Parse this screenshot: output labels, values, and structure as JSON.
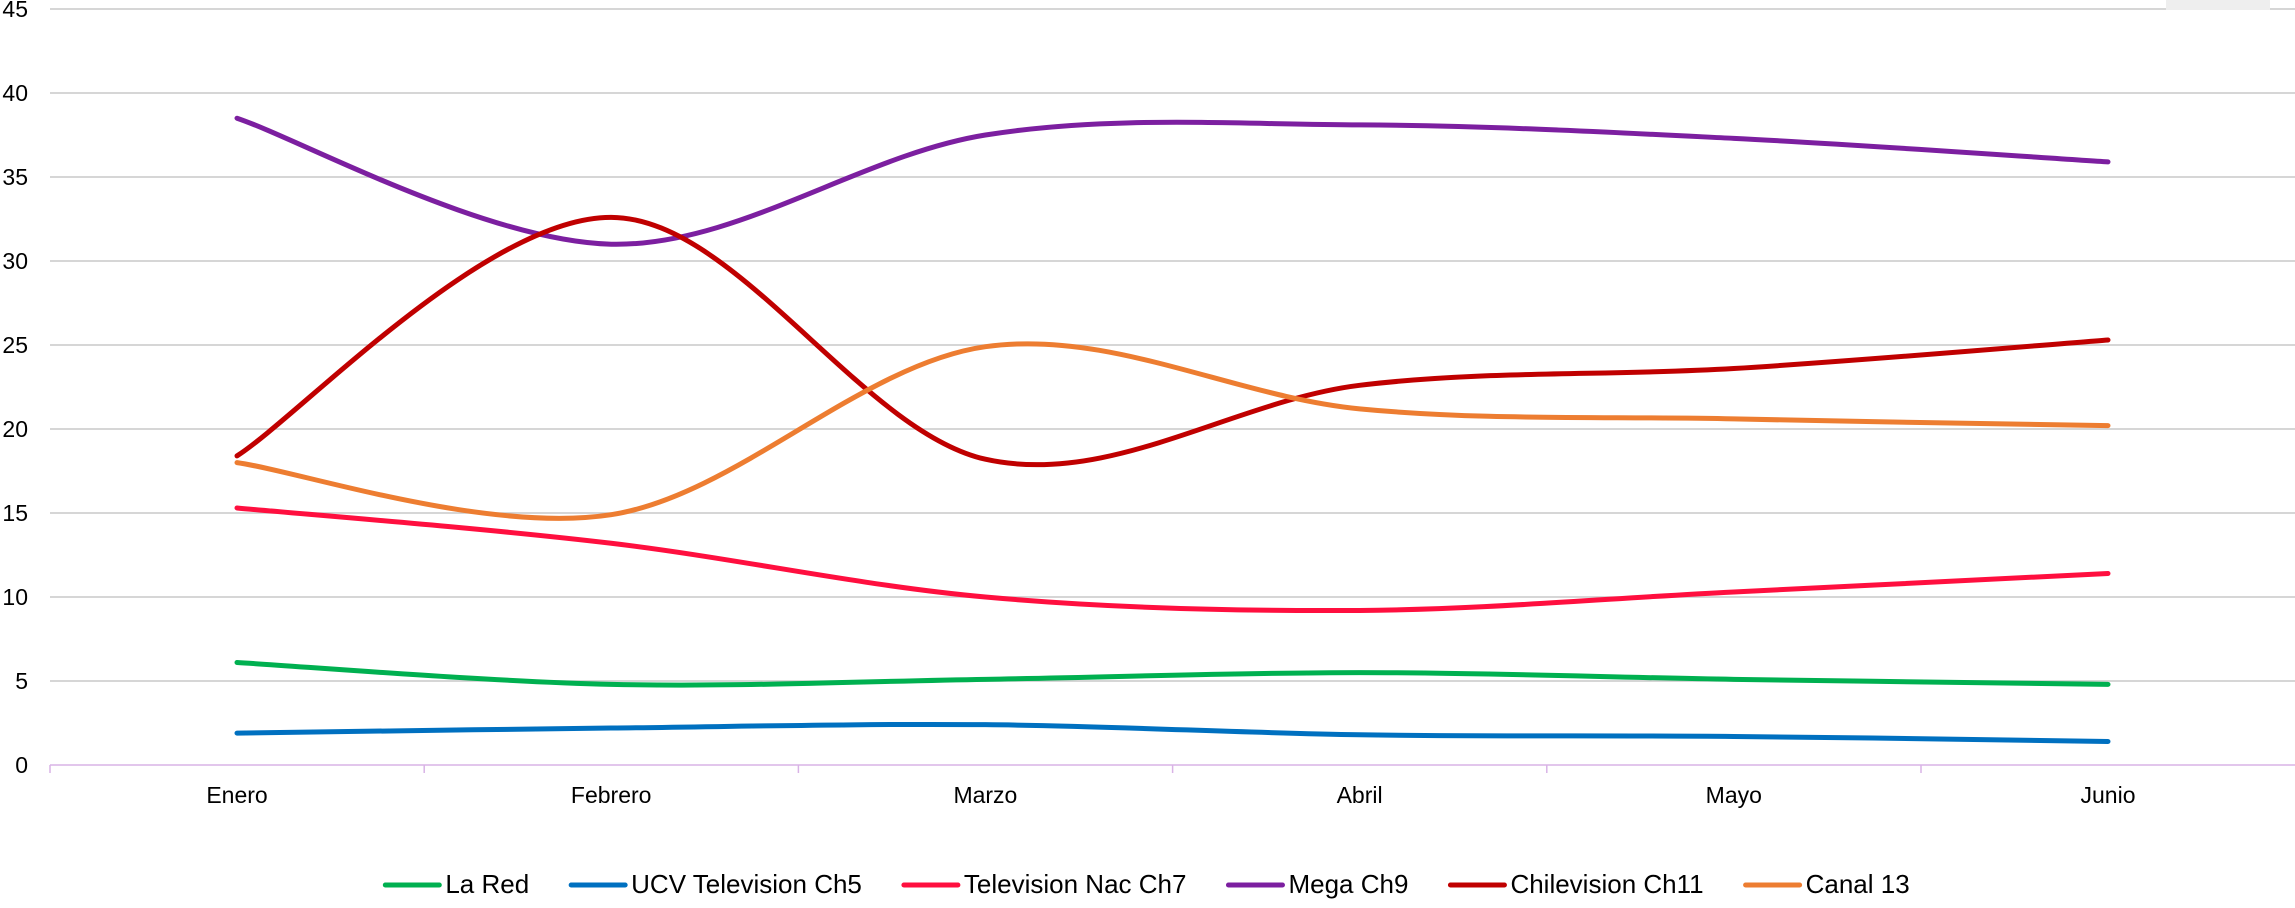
{
  "chart_data": {
    "type": "line",
    "categories": [
      "Enero",
      "Febrero",
      "Marzo",
      "Abril",
      "Mayo",
      "Junio"
    ],
    "ylim": [
      0,
      45
    ],
    "yticks": [
      0,
      5,
      10,
      15,
      20,
      25,
      30,
      35,
      40,
      45
    ],
    "grid": true,
    "smooth": true,
    "legend_position": "bottom",
    "series": [
      {
        "name": "La Red",
        "color": "#00b050",
        "values": [
          6.1,
          4.8,
          5.1,
          5.5,
          5.1,
          4.8
        ]
      },
      {
        "name": "UCV Television Ch5",
        "color": "#0070c0",
        "values": [
          1.9,
          2.2,
          2.4,
          1.8,
          1.7,
          1.4
        ]
      },
      {
        "name": "Television Nac Ch7",
        "color": "#ff0f3f",
        "values": [
          15.3,
          13.2,
          10.0,
          9.2,
          10.3,
          11.4
        ]
      },
      {
        "name": "Mega Ch9",
        "color": "#7c1fa0",
        "values": [
          38.5,
          31.0,
          37.5,
          38.1,
          37.3,
          35.9
        ]
      },
      {
        "name": "Chilevision Ch11",
        "color": "#c00000",
        "values": [
          18.4,
          32.6,
          18.2,
          22.6,
          23.6,
          25.3
        ]
      },
      {
        "name": "Canal 13",
        "color": "#ed7d31",
        "values": [
          18.0,
          14.9,
          24.9,
          21.2,
          20.6,
          20.2
        ]
      }
    ]
  }
}
